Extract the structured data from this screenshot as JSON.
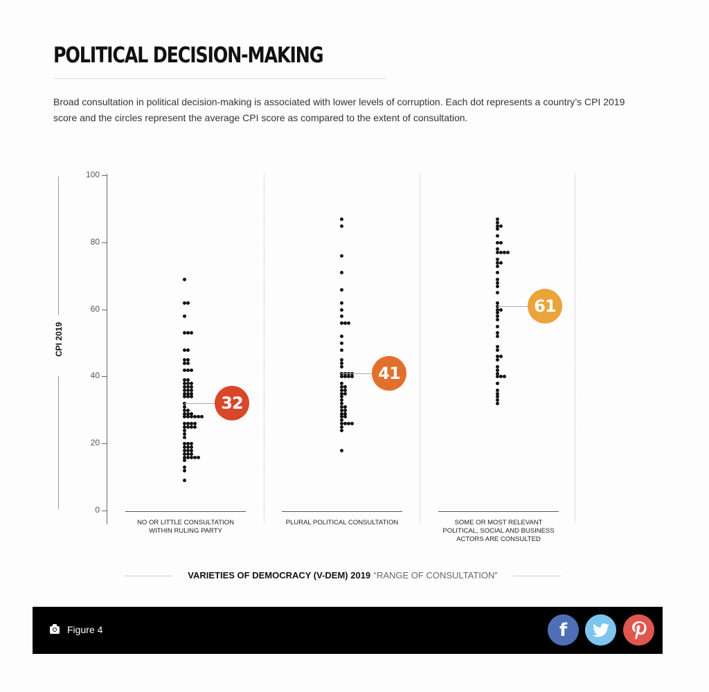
{
  "header": {
    "title": "POLITICAL DECISION-MAKING",
    "description": "Broad consultation in political decision-making is associated with lower levels of corruption. Each dot represents a country’s CPI 2019 score and the circles represent the average CPI score as compared to the extent of consultation."
  },
  "chart_data": {
    "type": "scatter",
    "subtype": "beeswarm dot plot with category means",
    "title": "POLITICAL DECISION-MAKING",
    "ylabel": "CPI 2019",
    "xlabel_bold": "VARIETIES OF DEMOCRACY (V-DEM) 2019",
    "xlabel_light": "“RANGE OF CONSULTATION”",
    "ylim": [
      0,
      100
    ],
    "yticks": [
      "100",
      "80",
      "60",
      "40",
      "20",
      "0"
    ],
    "grid": false,
    "categories": [
      "NO OR LITTLE CONSULTATION WITHIN RULING PARTY",
      "PLURAL POLITICAL CONSULTATION",
      "SOME OR MOST RELEVANT POLITICAL, SOCIAL AND BUSINESS ACTORS ARE CONSULTED"
    ],
    "means": [
      32,
      41,
      61
    ],
    "mean_colors": [
      "#d9472b",
      "#e2702c",
      "#eba43a"
    ],
    "series": [
      {
        "name": "No or little consultation within ruling party",
        "values": [
          69,
          62,
          62,
          58,
          53,
          53,
          53,
          48,
          48,
          45,
          45,
          44,
          44,
          42,
          42,
          42,
          39,
          39,
          38,
          38,
          38,
          37,
          37,
          37,
          36,
          36,
          36,
          35,
          35,
          35,
          34,
          34,
          34,
          32,
          31,
          30,
          30,
          29,
          29,
          29,
          28,
          28,
          28,
          28,
          28,
          28,
          26,
          26,
          26,
          26,
          25,
          25,
          25,
          25,
          24,
          23,
          22,
          20,
          20,
          20,
          19,
          19,
          19,
          18,
          18,
          18,
          17,
          17,
          17,
          16,
          16,
          16,
          16,
          16,
          15,
          13,
          12,
          9
        ]
      },
      {
        "name": "Plural political consultation",
        "values": [
          87,
          85,
          76,
          71,
          66,
          62,
          60,
          58,
          56,
          56,
          56,
          52,
          50,
          48,
          45,
          44,
          43,
          41,
          41,
          41,
          41,
          40,
          40,
          40,
          40,
          38,
          37,
          37,
          36,
          36,
          35,
          35,
          34,
          33,
          32,
          31,
          31,
          30,
          30,
          29,
          29,
          28,
          28,
          27,
          26,
          26,
          26,
          26,
          25,
          24,
          18
        ]
      },
      {
        "name": "Some or most relevant actors are consulted",
        "values": [
          87,
          86,
          85,
          85,
          84,
          82,
          80,
          80,
          78,
          77,
          77,
          77,
          77,
          75,
          74,
          74,
          73,
          71,
          69,
          68,
          67,
          65,
          62,
          61,
          60,
          60,
          59,
          58,
          57,
          55,
          53,
          52,
          49,
          48,
          46,
          46,
          45,
          43,
          42,
          41,
          40,
          40,
          40,
          38,
          36,
          35,
          34,
          33,
          32
        ]
      }
    ]
  },
  "axis": {
    "ylabel": "CPI 2019",
    "ticks": [
      {
        "label": "100",
        "value": 100
      },
      {
        "label": "80",
        "value": 80
      },
      {
        "label": "60",
        "value": 60
      },
      {
        "label": "40",
        "value": 40
      },
      {
        "label": "20",
        "value": 20
      },
      {
        "label": "0",
        "value": 0
      }
    ]
  },
  "categories": [
    {
      "label_lines": [
        "NO OR LITTLE CONSULTATION",
        "WITHIN RULING PARTY"
      ],
      "mean": "32",
      "color": "#d9472b"
    },
    {
      "label_lines": [
        "PLURAL POLITICAL CONSULTATION"
      ],
      "mean": "41",
      "color": "#e2702c"
    },
    {
      "label_lines": [
        "SOME OR MOST RELEVANT",
        "POLITICAL, SOCIAL AND BUSINESS",
        "ACTORS ARE CONSULTED"
      ],
      "mean": "61",
      "color": "#eba43a"
    }
  ],
  "xtitle": {
    "bold": "VARIETIES OF DEMOCRACY (V-DEM) 2019",
    "light": "“RANGE OF CONSULTATION”"
  },
  "footer": {
    "camera_icon": "camera-icon",
    "figure_label": "Figure 4",
    "social": [
      {
        "name": "facebook",
        "glyph": "f",
        "color": "#4f6eb5"
      },
      {
        "name": "twitter",
        "glyph": "🐦",
        "color": "#7cc6ee"
      },
      {
        "name": "pinterest",
        "glyph": "P",
        "color": "#e0574f"
      }
    ]
  }
}
